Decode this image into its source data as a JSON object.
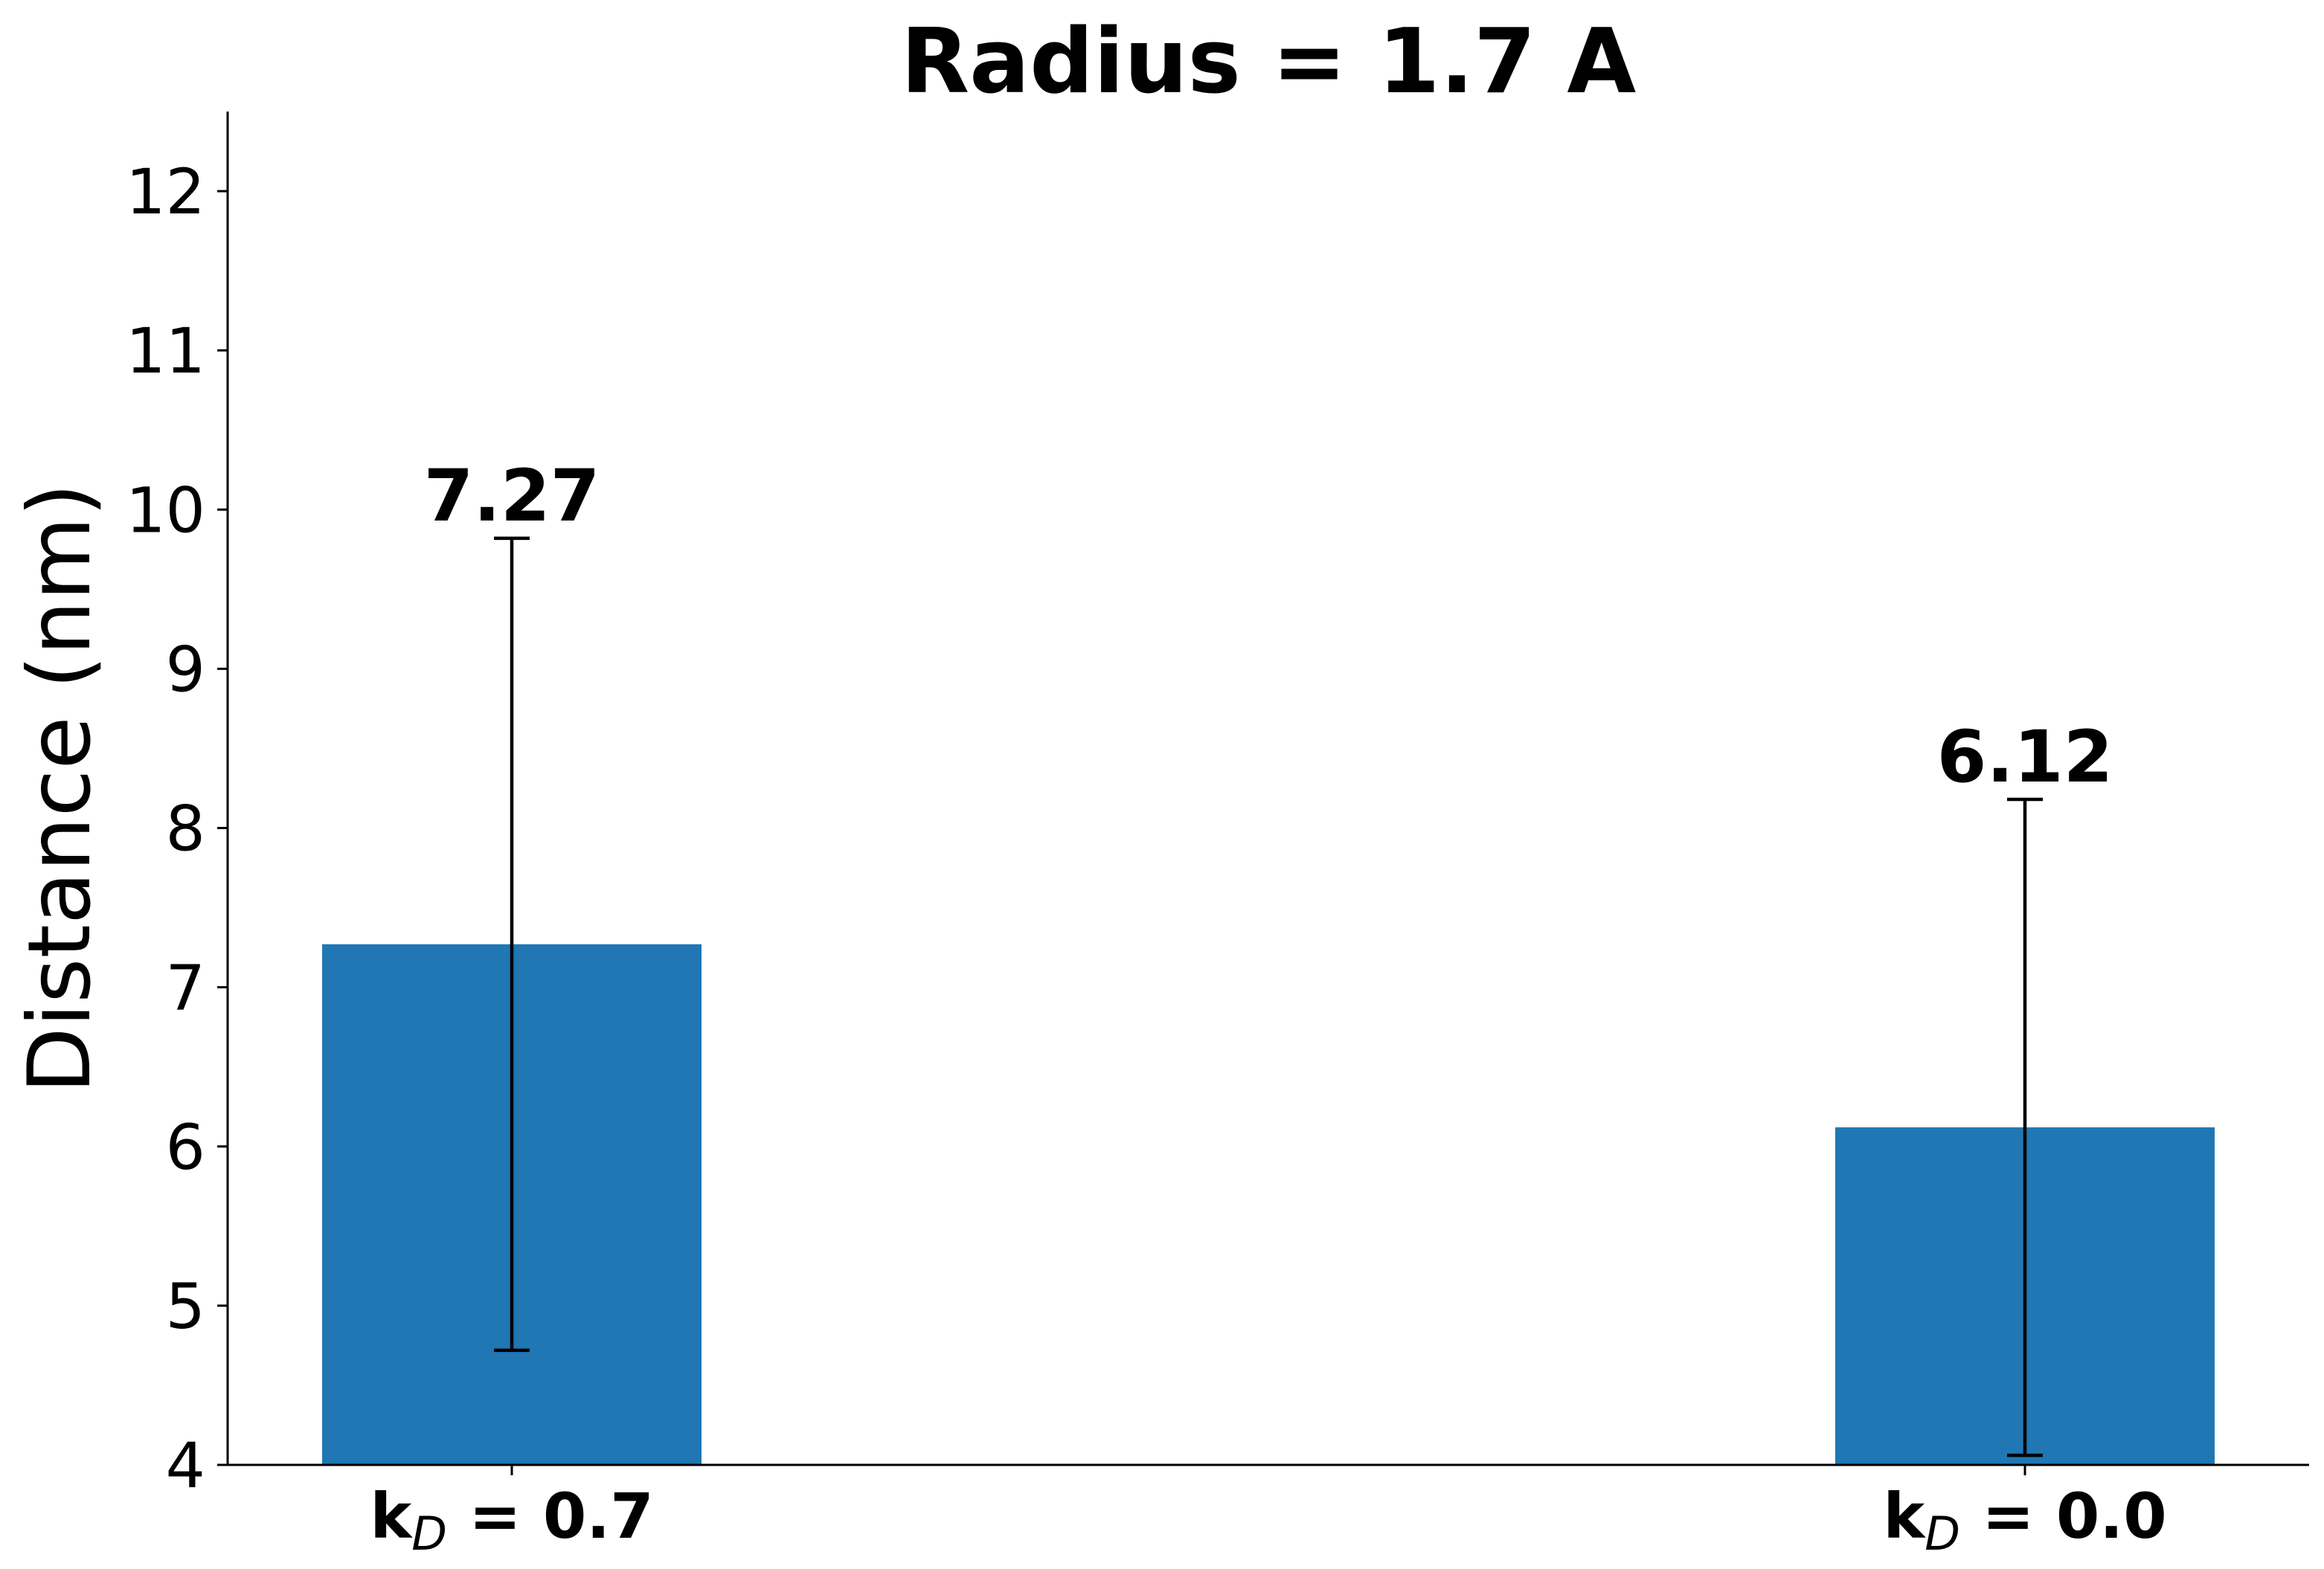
{
  "chart_data": {
    "type": "bar",
    "title": "Radius = 1.7 A",
    "xlabel": "",
    "ylabel": "Distance (nm)",
    "categories": [
      {
        "main": "k",
        "sub": "D",
        "rest": " = 0.7"
      },
      {
        "main": "k",
        "sub": "D",
        "rest": " = 0.0"
      }
    ],
    "values": [
      7.27,
      6.12
    ],
    "value_labels": [
      "7.27",
      "6.12"
    ],
    "error_bars": [
      {
        "low": 4.72,
        "high": 9.82
      },
      {
        "low": 4.06,
        "high": 8.18
      }
    ],
    "ylim": [
      4,
      12.5
    ],
    "yticks": [
      4,
      5,
      6,
      7,
      8,
      9,
      10,
      11,
      12
    ],
    "grid": false,
    "legend": "none",
    "bar_color": "#2077b4",
    "error_color": "#000000"
  }
}
